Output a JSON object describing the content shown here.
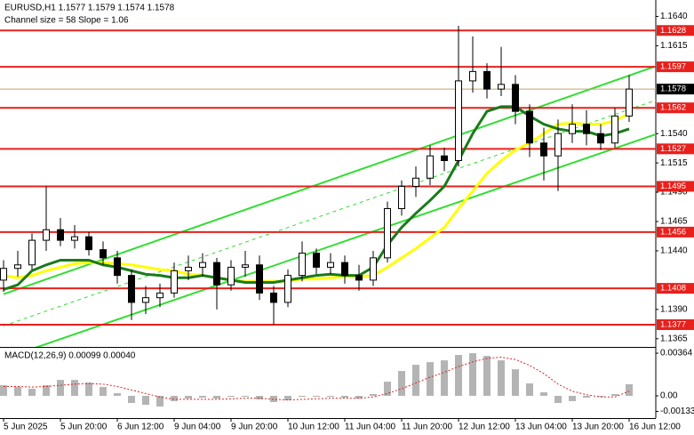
{
  "chart_data": [
    {
      "type": "candlestick",
      "title": "EURUSD,H1  1.1577 1.1579 1.1574 1.1578",
      "subtitle": "Channel size = 58 Slope = 1.06",
      "categories": [
        "5 Jun 2025",
        null,
        null,
        null,
        "5 Jun 20:00",
        null,
        null,
        null,
        "6 Jun 12:00",
        null,
        null,
        null,
        "9 Jun 04:00",
        null,
        null,
        null,
        "9 Jun 20:00",
        null,
        null,
        null,
        "10 Jun 12:00",
        null,
        null,
        null,
        "11 Jun 04:00",
        null,
        null,
        null,
        "11 Jun 20:00",
        null,
        null,
        null,
        "12 Jun 12:00",
        null,
        null,
        null,
        "13 Jun 04:00",
        null,
        null,
        null,
        "13 Jun 20:00",
        null,
        null,
        null,
        "16 Jun 12:00"
      ],
      "open": [
        1.1415,
        1.1425,
        1.1428,
        1.1449,
        1.1458,
        1.1449,
        1.1452,
        1.1441,
        1.1434,
        1.1419,
        1.1396,
        1.14,
        1.1404,
        1.1423,
        1.1426,
        1.143,
        1.1411,
        1.1426,
        1.1428,
        1.1404,
        1.1396,
        1.1419,
        1.1438,
        1.1426,
        1.143,
        1.1419,
        1.1415,
        1.1434,
        1.1476,
        1.1495,
        1.1502,
        1.1521,
        1.1517,
        1.1585,
        1.1593,
        1.1578,
        1.1582,
        1.1559,
        1.1532,
        1.1521,
        1.154,
        1.1548,
        1.154,
        1.1532,
        1.1555
      ],
      "high": [
        1.1432,
        1.144,
        1.1455,
        1.1495,
        1.1468,
        1.1462,
        1.1456,
        1.1448,
        1.144,
        1.1424,
        1.141,
        1.1412,
        1.143,
        1.1436,
        1.1438,
        1.1434,
        1.1432,
        1.144,
        1.1436,
        1.141,
        1.1424,
        1.1448,
        1.1442,
        1.1438,
        1.1436,
        1.1428,
        1.144,
        1.1482,
        1.15,
        1.1512,
        1.153,
        1.1528,
        1.1632,
        1.1623,
        1.16,
        1.1614,
        1.159,
        1.1565,
        1.1545,
        1.1552,
        1.1565,
        1.156,
        1.1548,
        1.1562,
        1.159
      ],
      "low": [
        1.1405,
        1.1418,
        1.1424,
        1.144,
        1.1444,
        1.1442,
        1.1436,
        1.1428,
        1.1412,
        1.1381,
        1.1386,
        1.1392,
        1.14,
        1.1415,
        1.1418,
        1.139,
        1.1406,
        1.1418,
        1.1398,
        1.1377,
        1.1392,
        1.1414,
        1.142,
        1.142,
        1.1412,
        1.1406,
        1.141,
        1.143,
        1.147,
        1.1486,
        1.1496,
        1.1508,
        1.1512,
        1.1575,
        1.157,
        1.1572,
        1.1548,
        1.152,
        1.15,
        1.1491,
        1.1532,
        1.153,
        1.1526,
        1.1528,
        1.155
      ],
      "close": [
        1.1425,
        1.1428,
        1.1449,
        1.1458,
        1.1449,
        1.1452,
        1.1441,
        1.1434,
        1.1419,
        1.1396,
        1.14,
        1.1404,
        1.1423,
        1.1426,
        1.143,
        1.1411,
        1.1426,
        1.1428,
        1.1404,
        1.1396,
        1.1419,
        1.1438,
        1.1426,
        1.143,
        1.1419,
        1.1415,
        1.1434,
        1.1476,
        1.1495,
        1.1502,
        1.1521,
        1.1517,
        1.1585,
        1.1593,
        1.1578,
        1.1582,
        1.1559,
        1.1532,
        1.1521,
        1.154,
        1.1548,
        1.154,
        1.1532,
        1.1555,
        1.1578
      ],
      "series": [
        {
          "color": "#ffff00",
          "values": [
            1.1419,
            1.1417,
            1.1419,
            1.1423,
            1.1426,
            1.1429,
            1.143,
            1.143,
            1.1429,
            1.1428,
            1.1426,
            1.1424,
            1.1423,
            1.142,
            1.1419,
            1.1417,
            1.1415,
            1.1414,
            1.1414,
            1.1414,
            1.1414,
            1.1416,
            1.1416,
            1.1417,
            1.1418,
            1.1418,
            1.1419,
            1.1426,
            1.1434,
            1.1442,
            1.1451,
            1.146,
            1.1476,
            1.1491,
            1.1506,
            1.1517,
            1.1526,
            1.1532,
            1.154,
            1.1548,
            1.1549,
            1.1548,
            1.1548,
            1.1551,
            1.1557
          ]
        },
        {
          "color": "#1a7a1a",
          "values": [
            1.1407,
            1.1411,
            1.1423,
            1.1428,
            1.1432,
            1.1432,
            1.1432,
            1.1428,
            1.1426,
            1.1423,
            1.142,
            1.1419,
            1.1417,
            1.1417,
            1.1419,
            1.1417,
            1.1415,
            1.1413,
            1.1413,
            1.1413,
            1.1415,
            1.1417,
            1.1419,
            1.142,
            1.1419,
            1.1419,
            1.1426,
            1.1445,
            1.146,
            1.1472,
            1.1483,
            1.1495,
            1.1517,
            1.154,
            1.1559,
            1.1563,
            1.1563,
            1.1555,
            1.1548,
            1.1544,
            1.1542,
            1.1542,
            1.1538,
            1.154,
            1.1544
          ]
        }
      ],
      "channel": {
        "color": "#33dd33",
        "x": [
          0,
          46
        ],
        "upper": [
          1.1403,
          1.1598
        ],
        "middle": [
          1.1376,
          1.1569
        ],
        "lower": [
          1.1348,
          1.154
        ]
      },
      "levels": {
        "color": "#e8201c",
        "values": [
          1.1628,
          1.1597,
          1.1562,
          1.1527,
          1.1495,
          1.1456,
          1.1408,
          1.1377
        ]
      },
      "current_price": 1.1578,
      "ylim": [
        1.1358,
        1.1654
      ],
      "yticks": [
        {
          "value": 1.164,
          "label": "1.1640"
        },
        1.1615,
        {
          "value": 1.154,
          "label": "1.1540"
        },
        1.1515,
        {
          "value": 1.149,
          "label": "1.1490"
        },
        1.1465,
        {
          "value": 1.144,
          "label": "1.1440"
        },
        {
          "value": 1.139,
          "label": "1.1390"
        },
        1.1365
      ]
    },
    {
      "type": "macd",
      "title": "MACD(12,26,9) 0.00099 0.00040",
      "histogram": [
        0.00091,
        0.00076,
        0.00061,
        0.00091,
        0.00136,
        0.00136,
        0.00114,
        0.00076,
        0.00023,
        -0.00061,
        -0.00076,
        -0.00091,
        -0.00045,
        -0.00023,
        -0.00015,
        -0.00023,
        -8e-05,
        -8e-05,
        -0.0003,
        -0.00053,
        -0.00038,
        -8e-05,
        -8e-05,
        -8e-05,
        -0.00015,
        -0.00023,
        0.00015,
        0.00121,
        0.00212,
        0.00265,
        0.00288,
        0.00303,
        0.00349,
        0.00364,
        0.00341,
        0.00303,
        0.00227,
        0.00106,
        0.0003,
        -0.00061,
        -0.00045,
        -0.00015,
        -8e-05,
        0.00015,
        0.00099
      ],
      "histogram_color": "#b4b4b4",
      "signal": [
        0.0008,
        0.0008,
        0.00075,
        0.0008,
        0.0009,
        0.001,
        0.00105,
        0.001,
        0.0008,
        0.0005,
        0.0002,
        -0.0001,
        -0.0003,
        -0.0003,
        -0.0003,
        -0.0003,
        -0.00025,
        -0.0002,
        -0.0002,
        -0.0003,
        -0.00035,
        -0.0003,
        -0.00025,
        -0.0002,
        -0.0002,
        -0.0002,
        -0.0001,
        0.0002,
        0.0006,
        0.0011,
        0.0016,
        0.002,
        0.0025,
        0.0029,
        0.0032,
        0.0033,
        0.0031,
        0.0026,
        0.0019,
        0.001,
        0.0004,
        0.0001,
        -0.0001,
        -0.0001,
        0.0004
      ],
      "signal_color": "#e02020",
      "ylim": [
        -0.0019,
        0.0041
      ],
      "yticks": [
        0.00364,
        {
          "value": 0,
          "label": "0.00"
        },
        -0.00133
      ]
    }
  ]
}
